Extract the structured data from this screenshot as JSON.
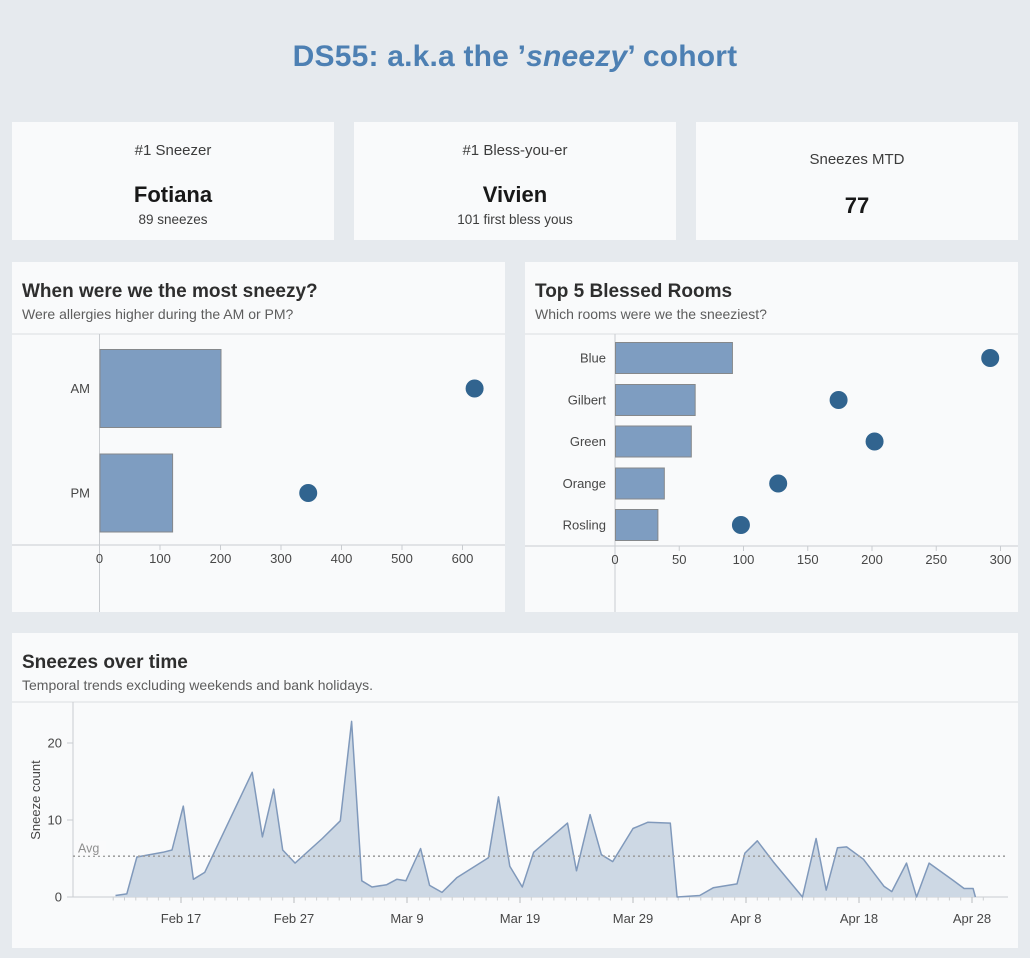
{
  "header": {
    "title_pre": "DS55: a.k.a the ’",
    "title_em": "sneezy",
    "title_post": "’ cohort"
  },
  "kpis": [
    {
      "label": "#1 Sneezer",
      "value": "Fotiana",
      "sub": "89 sneezes"
    },
    {
      "label": "#1 Bless-you-er",
      "value": "Vivien",
      "sub": "101 first bless yous"
    },
    {
      "label": "Sneezes MTD",
      "value": "77"
    }
  ],
  "chart_data": [
    {
      "type": "bar",
      "orientation": "horizontal",
      "title": "When were we the most sneezy?",
      "subtitle": "Were allergies higher during the AM or PM?",
      "categories": [
        "AM",
        "PM"
      ],
      "series": [
        {
          "name": "bar",
          "type": "bar",
          "values": [
            200,
            120
          ]
        },
        {
          "name": "dot",
          "type": "scatter",
          "values": [
            620,
            345
          ]
        }
      ],
      "xlim": [
        0,
        660
      ],
      "xticks": [
        0,
        100,
        200,
        300,
        400,
        500,
        600
      ],
      "grid": false,
      "legend": "none"
    },
    {
      "type": "bar",
      "orientation": "horizontal",
      "title": "Top 5 Blessed Rooms",
      "subtitle": "Which rooms were we the sneeziest?",
      "categories": [
        "Blue",
        "Gilbert",
        "Green",
        "Orange",
        "Rosling"
      ],
      "series": [
        {
          "name": "bar",
          "type": "bar",
          "values": [
            91,
            62,
            59,
            38,
            33
          ]
        },
        {
          "name": "dot",
          "type": "scatter",
          "values": [
            292,
            174,
            202,
            127,
            98
          ]
        }
      ],
      "xlim": [
        0,
        310
      ],
      "xticks": [
        0,
        50,
        100,
        150,
        200,
        250,
        300
      ],
      "grid": false,
      "legend": "none"
    },
    {
      "type": "area",
      "title": "Sneezes over time",
      "subtitle": "Temporal trends excluding weekends and bank holidays.",
      "ylabel": "Sneeze count",
      "yticks": [
        0,
        10,
        20
      ],
      "ylim": [
        0,
        24
      ],
      "x_tick_labels": [
        "Feb 17",
        "Feb 27",
        "Mar 9",
        "Mar 19",
        "Mar 29",
        "Apr 8",
        "Apr 18",
        "Apr 28"
      ],
      "x_tick_days": [
        0,
        10,
        20,
        30,
        40,
        50,
        60,
        70
      ],
      "avg_line": {
        "label": "Avg",
        "value": 5.3
      },
      "points": [
        [
          -5.8,
          0.2
        ],
        [
          -4.8,
          0.4
        ],
        [
          -3.9,
          5.2
        ],
        [
          -1.6,
          5.8
        ],
        [
          -0.8,
          6.1
        ],
        [
          0.2,
          11.8
        ],
        [
          1.1,
          2.3
        ],
        [
          2.1,
          3.2
        ],
        [
          6.3,
          16.2
        ],
        [
          7.2,
          7.8
        ],
        [
          8.2,
          14.0
        ],
        [
          9.0,
          6.1
        ],
        [
          10.1,
          4.4
        ],
        [
          12.5,
          7.6
        ],
        [
          14.1,
          9.9
        ],
        [
          15.1,
          22.8
        ],
        [
          16.0,
          2.1
        ],
        [
          16.9,
          1.3
        ],
        [
          18.2,
          1.6
        ],
        [
          19.1,
          2.3
        ],
        [
          19.9,
          2.1
        ],
        [
          21.2,
          6.3
        ],
        [
          22.0,
          1.5
        ],
        [
          23.1,
          0.6
        ],
        [
          24.4,
          2.5
        ],
        [
          27.2,
          5.1
        ],
        [
          28.1,
          13.0
        ],
        [
          29.1,
          4.0
        ],
        [
          30.2,
          1.3
        ],
        [
          31.2,
          5.8
        ],
        [
          34.2,
          9.6
        ],
        [
          35.0,
          3.4
        ],
        [
          36.2,
          10.7
        ],
        [
          37.2,
          5.5
        ],
        [
          38.2,
          4.6
        ],
        [
          40.0,
          8.9
        ],
        [
          41.3,
          9.7
        ],
        [
          43.3,
          9.6
        ],
        [
          43.9,
          0.0
        ],
        [
          45.9,
          0.2
        ],
        [
          47.1,
          1.2
        ],
        [
          49.2,
          1.7
        ],
        [
          49.9,
          5.7
        ],
        [
          51.0,
          7.3
        ],
        [
          52.4,
          4.6
        ],
        [
          55.0,
          0.0
        ],
        [
          56.2,
          7.6
        ],
        [
          57.1,
          0.9
        ],
        [
          58.1,
          6.4
        ],
        [
          58.9,
          6.5
        ],
        [
          60.4,
          4.9
        ],
        [
          62.2,
          1.4
        ],
        [
          62.9,
          0.7
        ],
        [
          64.2,
          4.4
        ],
        [
          65.1,
          0.0
        ],
        [
          66.2,
          4.4
        ],
        [
          68.3,
          2.2
        ],
        [
          69.3,
          1.1
        ],
        [
          70.1,
          1.1
        ],
        [
          70.3,
          0.0
        ]
      ]
    }
  ],
  "colors": {
    "page_bg": "#e6eaee",
    "panel_bg": "#f9fafb",
    "title_accent": "#4d80b3",
    "bar_fill": "#7e9dc1",
    "bar_border": "#85888b",
    "dot_fill": "#31648f",
    "area_fill": "#cdd8e4",
    "area_line": "#8099bb",
    "avg_line": "#a0a0a0",
    "separator": "#dcdfe2",
    "axis_line": "#c9ccd0",
    "tick_text": "#474747"
  }
}
